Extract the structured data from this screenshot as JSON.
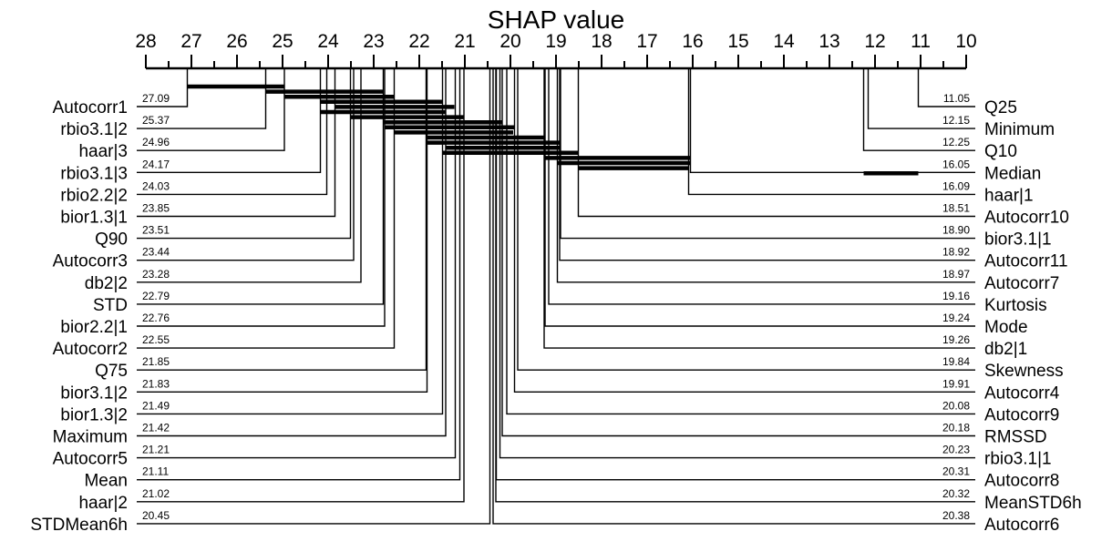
{
  "chart_data": {
    "type": "critical-difference",
    "title": "SHAP value",
    "axis": {
      "min": 10,
      "max": 28,
      "reversed": true,
      "tick_labels": [
        "28",
        "27",
        "26",
        "25",
        "24",
        "23",
        "22",
        "21",
        "20",
        "19",
        "18",
        "17",
        "16",
        "15",
        "14",
        "13",
        "12",
        "11",
        "10"
      ]
    },
    "left_items": [
      {
        "name": "Autocorr1",
        "value": 27.09,
        "label": "27.09"
      },
      {
        "name": "rbio3.1|2",
        "value": 25.37,
        "label": "25.37"
      },
      {
        "name": "haar|3",
        "value": 24.96,
        "label": "24.96"
      },
      {
        "name": "rbio3.1|3",
        "value": 24.17,
        "label": "24.17"
      },
      {
        "name": "rbio2.2|2",
        "value": 24.03,
        "label": "24.03"
      },
      {
        "name": "bior1.3|1",
        "value": 23.85,
        "label": "23.85"
      },
      {
        "name": "Q90",
        "value": 23.51,
        "label": "23.51"
      },
      {
        "name": "Autocorr3",
        "value": 23.44,
        "label": "23.44"
      },
      {
        "name": "db2|2",
        "value": 23.28,
        "label": "23.28"
      },
      {
        "name": "STD",
        "value": 22.79,
        "label": "22.79"
      },
      {
        "name": "bior2.2|1",
        "value": 22.76,
        "label": "22.76"
      },
      {
        "name": "Autocorr2",
        "value": 22.55,
        "label": "22.55"
      },
      {
        "name": "Q75",
        "value": 21.85,
        "label": "21.85"
      },
      {
        "name": "bior3.1|2",
        "value": 21.83,
        "label": "21.83"
      },
      {
        "name": "bior1.3|2",
        "value": 21.49,
        "label": "21.49"
      },
      {
        "name": "Maximum",
        "value": 21.42,
        "label": "21.42"
      },
      {
        "name": "Autocorr5",
        "value": 21.21,
        "label": "21.21"
      },
      {
        "name": "Mean",
        "value": 21.11,
        "label": "21.11"
      },
      {
        "name": "haar|2",
        "value": 21.02,
        "label": "21.02"
      },
      {
        "name": "STDMean6h",
        "value": 20.45,
        "label": "20.45"
      }
    ],
    "right_items": [
      {
        "name": "Q25",
        "value": 11.05,
        "label": "11.05"
      },
      {
        "name": "Minimum",
        "value": 12.15,
        "label": "12.15"
      },
      {
        "name": "Q10",
        "value": 12.25,
        "label": "12.25"
      },
      {
        "name": "Median",
        "value": 16.05,
        "label": "16.05"
      },
      {
        "name": "haar|1",
        "value": 16.09,
        "label": "16.09"
      },
      {
        "name": "Autocorr10",
        "value": 18.51,
        "label": "18.51"
      },
      {
        "name": "bior3.1|1",
        "value": 18.9,
        "label": "18.90"
      },
      {
        "name": "Autocorr11",
        "value": 18.92,
        "label": "18.92"
      },
      {
        "name": "Autocorr7",
        "value": 18.97,
        "label": "18.97"
      },
      {
        "name": "Kurtosis",
        "value": 19.16,
        "label": "19.16"
      },
      {
        "name": "Mode",
        "value": 19.24,
        "label": "19.24"
      },
      {
        "name": "db2|1",
        "value": 19.26,
        "label": "19.26"
      },
      {
        "name": "Skewness",
        "value": 19.84,
        "label": "19.84"
      },
      {
        "name": "Autocorr4",
        "value": 19.91,
        "label": "19.91"
      },
      {
        "name": "Autocorr9",
        "value": 20.08,
        "label": "20.08"
      },
      {
        "name": "RMSSD",
        "value": 20.18,
        "label": "20.18"
      },
      {
        "name": "rbio3.1|1",
        "value": 20.23,
        "label": "20.23"
      },
      {
        "name": "Autocorr8",
        "value": 20.31,
        "label": "20.31"
      },
      {
        "name": "MeanSTD6h",
        "value": 20.32,
        "label": "20.32"
      },
      {
        "name": "Autocorr6",
        "value": 20.38,
        "label": "20.38"
      }
    ],
    "cliques": [
      {
        "from": 27.09,
        "to": 24.96
      },
      {
        "from": 25.37,
        "to": 22.79
      },
      {
        "from": 24.96,
        "to": 22.55
      },
      {
        "from": 24.17,
        "to": 21.49
      },
      {
        "from": 23.85,
        "to": 21.23
      },
      {
        "from": 24.17,
        "to": 21.42
      },
      {
        "from": 23.51,
        "to": 21.02
      },
      {
        "from": 22.79,
        "to": 20.18
      },
      {
        "from": 22.76,
        "to": 19.91
      },
      {
        "from": 22.55,
        "to": 19.94
      },
      {
        "from": 21.85,
        "to": 19.24
      },
      {
        "from": 21.83,
        "to": 18.9
      },
      {
        "from": 21.42,
        "to": 18.92
      },
      {
        "from": 21.49,
        "to": 18.51
      },
      {
        "from": 19.26,
        "to": 16.05
      },
      {
        "from": 18.97,
        "to": 16.05
      },
      {
        "from": 18.51,
        "to": 16.09
      },
      {
        "from": 12.25,
        "to": 11.05
      }
    ]
  }
}
